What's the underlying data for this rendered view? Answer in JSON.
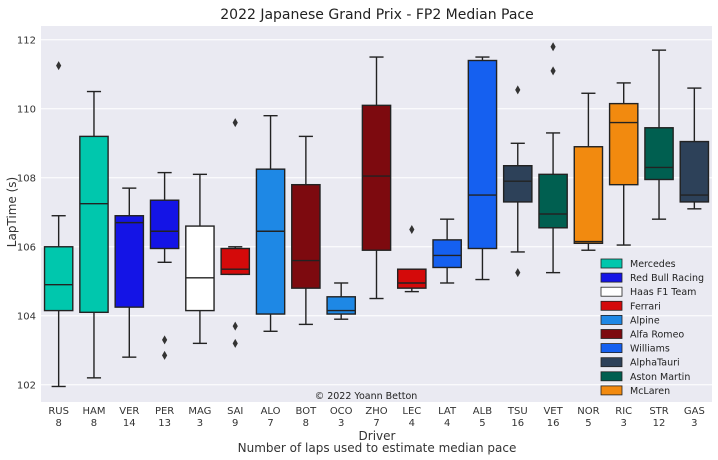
{
  "chart_data": {
    "type": "box",
    "title": "2022 Japanese Grand Prix - FP2 Median Pace",
    "xlabel": "Driver",
    "xlabel_sub": "Number of laps used to estimate median pace",
    "ylabel": "LapTime (s)",
    "ylim": [
      101.5,
      112.4
    ],
    "yticks": [
      102,
      104,
      106,
      108,
      110,
      112
    ],
    "grid": true,
    "legend_position": "lower-right",
    "credit": "© 2022 Yoann Betton",
    "teams": [
      {
        "name": "Mercedes",
        "color": "#00C7AD"
      },
      {
        "name": "Red Bull Racing",
        "color": "#1414E6"
      },
      {
        "name": "Haas F1 Team",
        "color": "#FFFFFF"
      },
      {
        "name": "Ferrari",
        "color": "#D40A0A"
      },
      {
        "name": "Alpine",
        "color": "#1E88E5"
      },
      {
        "name": "Alfa Romeo",
        "color": "#7D0A0F"
      },
      {
        "name": "Williams",
        "color": "#1560F0"
      },
      {
        "name": "AlphaTauri",
        "color": "#2D4159"
      },
      {
        "name": "Aston Martin",
        "color": "#005F50"
      },
      {
        "name": "McLaren",
        "color": "#F28A0F"
      }
    ],
    "drivers": [
      {
        "code": "RUS",
        "laps": "8",
        "team": 0,
        "q1": 104.15,
        "median": 104.9,
        "q3": 106.0,
        "low": 101.95,
        "high": 106.9,
        "fliers": [
          111.25
        ]
      },
      {
        "code": "HAM",
        "laps": "8",
        "team": 0,
        "q1": 104.1,
        "median": 107.25,
        "q3": 109.2,
        "low": 102.2,
        "high": 110.5,
        "fliers": []
      },
      {
        "code": "VER",
        "laps": "14",
        "team": 1,
        "q1": 104.25,
        "median": 106.7,
        "q3": 106.9,
        "low": 102.8,
        "high": 107.7,
        "fliers": []
      },
      {
        "code": "PER",
        "laps": "13",
        "team": 1,
        "q1": 105.95,
        "median": 106.45,
        "q3": 107.35,
        "low": 105.55,
        "high": 108.15,
        "fliers": [
          103.3,
          102.85
        ]
      },
      {
        "code": "MAG",
        "laps": "3",
        "team": 2,
        "q1": 104.15,
        "median": 105.1,
        "q3": 106.6,
        "low": 103.2,
        "high": 108.1,
        "fliers": []
      },
      {
        "code": "SAI",
        "laps": "9",
        "team": 3,
        "q1": 105.2,
        "median": 105.35,
        "q3": 105.95,
        "low": 105.2,
        "high": 106.0,
        "fliers": [
          109.6,
          103.7,
          103.2
        ]
      },
      {
        "code": "ALO",
        "laps": "7",
        "team": 4,
        "q1": 104.05,
        "median": 106.45,
        "q3": 108.25,
        "low": 103.55,
        "high": 109.8,
        "fliers": []
      },
      {
        "code": "BOT",
        "laps": "8",
        "team": 5,
        "q1": 104.8,
        "median": 105.6,
        "q3": 107.8,
        "low": 103.75,
        "high": 109.2,
        "fliers": []
      },
      {
        "code": "OCO",
        "laps": "3",
        "team": 4,
        "q1": 104.05,
        "median": 104.15,
        "q3": 104.55,
        "low": 103.9,
        "high": 104.95,
        "fliers": []
      },
      {
        "code": "ZHO",
        "laps": "7",
        "team": 5,
        "q1": 105.9,
        "median": 108.05,
        "q3": 110.1,
        "low": 104.5,
        "high": 111.5,
        "fliers": []
      },
      {
        "code": "LEC",
        "laps": "4",
        "team": 3,
        "q1": 104.8,
        "median": 104.95,
        "q3": 105.35,
        "low": 104.7,
        "high": 105.35,
        "fliers": [
          106.5
        ]
      },
      {
        "code": "LAT",
        "laps": "4",
        "team": 6,
        "q1": 105.4,
        "median": 105.75,
        "q3": 106.2,
        "low": 104.95,
        "high": 106.8,
        "fliers": []
      },
      {
        "code": "ALB",
        "laps": "5",
        "team": 6,
        "q1": 105.95,
        "median": 107.5,
        "q3": 111.4,
        "low": 105.05,
        "high": 111.5,
        "fliers": []
      },
      {
        "code": "TSU",
        "laps": "16",
        "team": 7,
        "q1": 107.3,
        "median": 107.9,
        "q3": 108.35,
        "low": 105.85,
        "high": 109.0,
        "fliers": [
          110.55,
          105.25
        ]
      },
      {
        "code": "VET",
        "laps": "16",
        "team": 8,
        "q1": 106.55,
        "median": 106.95,
        "q3": 108.1,
        "low": 105.25,
        "high": 109.3,
        "fliers": [
          111.8,
          111.1
        ]
      },
      {
        "code": "NOR",
        "laps": "5",
        "team": 9,
        "q1": 106.1,
        "median": 106.15,
        "q3": 108.9,
        "low": 105.9,
        "high": 110.45,
        "fliers": []
      },
      {
        "code": "RIC",
        "laps": "3",
        "team": 9,
        "q1": 107.8,
        "median": 109.6,
        "q3": 110.15,
        "low": 106.05,
        "high": 110.75,
        "fliers": []
      },
      {
        "code": "STR",
        "laps": "12",
        "team": 8,
        "q1": 107.95,
        "median": 108.3,
        "q3": 109.45,
        "low": 106.8,
        "high": 111.7,
        "fliers": []
      },
      {
        "code": "GAS",
        "laps": "3",
        "team": 7,
        "q1": 107.3,
        "median": 107.5,
        "q3": 109.05,
        "low": 107.1,
        "high": 110.6,
        "fliers": []
      }
    ]
  }
}
